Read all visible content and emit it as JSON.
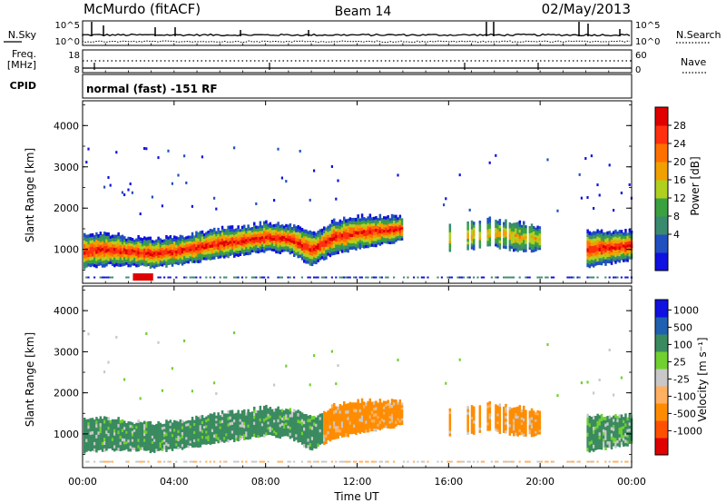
{
  "header": {
    "station": "McMurdo (fitACF)",
    "beam": "Beam 14",
    "date": "02/May/2013"
  },
  "noise_panel": {
    "left_label": "N.Sky",
    "left_ticks": [
      "10^5",
      "10^0"
    ],
    "right_label": "N.Search",
    "right_ticks": [
      "10^5",
      "10^0"
    ]
  },
  "freq_panel": {
    "left_label_1": "Freq.",
    "left_label_2": "[MHz]",
    "left_ticks": [
      "18",
      "8"
    ],
    "right_label": "Nave",
    "right_ticks": [
      "60",
      "0"
    ],
    "cpid_label": "CPID"
  },
  "mode_text": "normal (fast) -151 RF",
  "x_ticks": [
    "00:00",
    "04:00",
    "08:00",
    "12:00",
    "16:00",
    "20:00",
    "00:00"
  ],
  "x_label": "Time UT",
  "colors": {
    "power": [
      "#1010e0",
      "#2050c0",
      "#3a8a70",
      "#3aa040",
      "#b0d020",
      "#f0a000",
      "#ff7000",
      "#ff3010",
      "#e00000"
    ],
    "velocity": [
      "#e00000",
      "#ff5000",
      "#ff8c00",
      "#ffb060",
      "#c8c8c8",
      "#70d030",
      "#3a8a60",
      "#2060b0",
      "#1010e0"
    ]
  },
  "chart_data": [
    {
      "type": "heatmap",
      "title": "Power",
      "ylabel": "Slant Range [km]",
      "ylim": [
        180,
        4600
      ],
      "yticks": [
        "4000",
        "3000",
        "2000",
        "1000"
      ],
      "xlim_hours": [
        0,
        24
      ],
      "colorbar": {
        "label": "Power [dB]",
        "ticks": [
          "28",
          "24",
          "20",
          "16",
          "12",
          "8",
          "4"
        ]
      },
      "band": {
        "hours": [
          0,
          1,
          2,
          3,
          4,
          5,
          6,
          7,
          8,
          9,
          10,
          11,
          12,
          13,
          14,
          15,
          16,
          17,
          18,
          19,
          20,
          21,
          22,
          23,
          24
        ],
        "center_km": [
          950,
          1000,
          950,
          900,
          950,
          1050,
          1150,
          1200,
          1300,
          1250,
          1000,
          1300,
          1400,
          1450,
          1500,
          null,
          1300,
          1350,
          1400,
          1300,
          1250,
          null,
          1000,
          1050,
          1100
        ],
        "half_width_km": [
          350,
          350,
          300,
          300,
          300,
          300,
          300,
          300,
          300,
          300,
          350,
          350,
          350,
          300,
          250,
          null,
          300,
          300,
          300,
          300,
          250,
          null,
          400,
          350,
          300
        ]
      }
    },
    {
      "type": "heatmap",
      "title": "Velocity",
      "ylabel": "Slant Range [km]",
      "ylim": [
        180,
        4600
      ],
      "yticks": [
        "4000",
        "3000",
        "2000",
        "1000"
      ],
      "xlim_hours": [
        0,
        24
      ],
      "colorbar": {
        "label": "Velocity [m s⁻¹]",
        "ticks": [
          "1000",
          "500",
          "100",
          "25",
          "-25",
          "-100",
          "-500",
          "-1000"
        ]
      }
    }
  ]
}
